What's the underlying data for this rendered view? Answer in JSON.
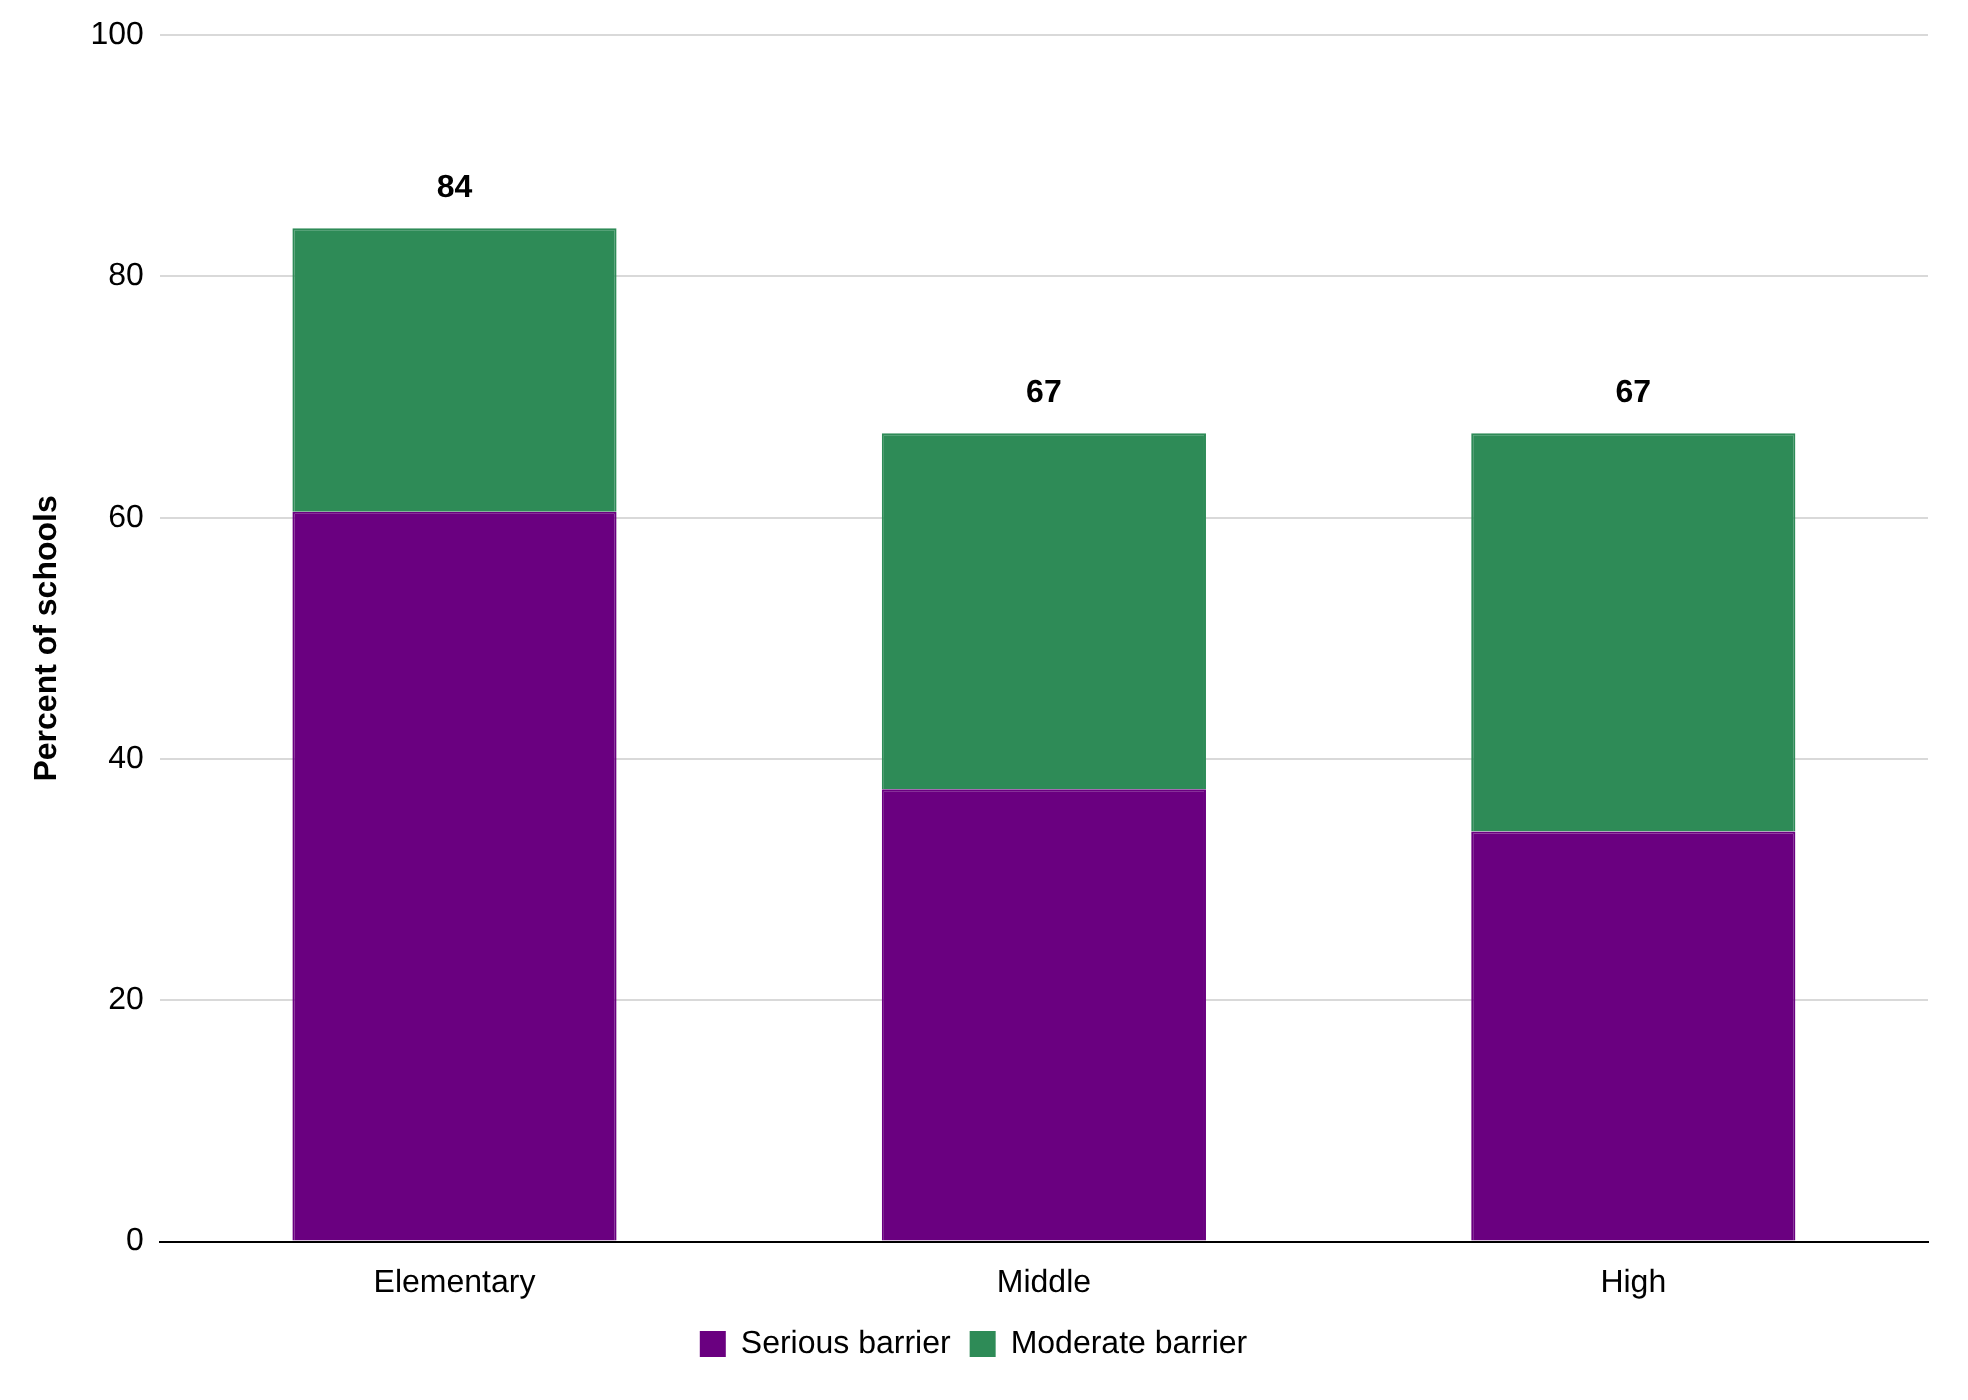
{
  "chart_data": {
    "type": "bar",
    "ylabel": "Percent of schools",
    "categories": [
      "Elementary",
      "Middle",
      "High"
    ],
    "series": [
      {
        "name": "Serious barrier",
        "color": "#6a0080",
        "values": [
          60.5,
          37.5,
          34
        ]
      },
      {
        "name": "Moderate barrier",
        "color": "#2e8b57",
        "values": [
          23.5,
          29.5,
          33
        ]
      }
    ],
    "stacked": true,
    "totals": [
      "84",
      "67",
      "67"
    ],
    "ylim": [
      0,
      100
    ],
    "yticks": [
      0,
      20,
      40,
      60,
      80,
      100
    ],
    "grid": "y",
    "legend": "bottom"
  }
}
